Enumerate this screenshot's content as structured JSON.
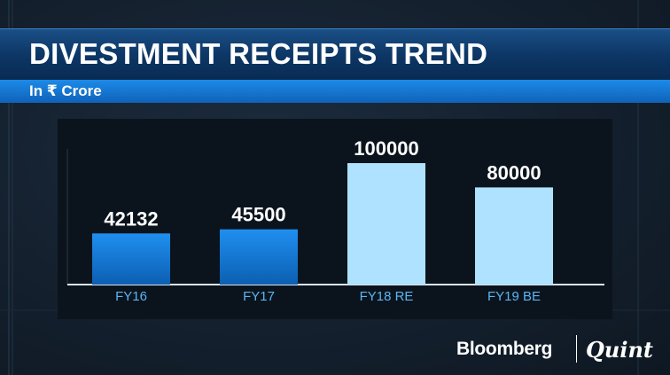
{
  "header": {
    "title": "DIVESTMENT RECEIPTS TREND",
    "subtitle": "In ₹ Crore"
  },
  "branding": {
    "bloomberg": "Bloomberg",
    "quint": "Quint"
  },
  "colors": {
    "bar_actual": "#1a86e0",
    "bar_estimate": "#aee2ff",
    "tick_label": "#5cb4f4",
    "value_label": "#ffffff"
  },
  "chart_data": {
    "type": "bar",
    "title": "DIVESTMENT RECEIPTS TREND",
    "subtitle": "In ₹ Crore",
    "categories": [
      "FY16",
      "FY17",
      "FY18 RE",
      "FY19 BE"
    ],
    "values": [
      42132,
      45500,
      100000,
      80000
    ],
    "data_labels": [
      "42132",
      "45500",
      "100000",
      "80000"
    ],
    "bar_style": [
      "actual",
      "actual",
      "estimate",
      "estimate"
    ],
    "xlabel": "",
    "ylabel": "",
    "ylim": [
      0,
      100000
    ],
    "grid": false,
    "legend": "none"
  }
}
